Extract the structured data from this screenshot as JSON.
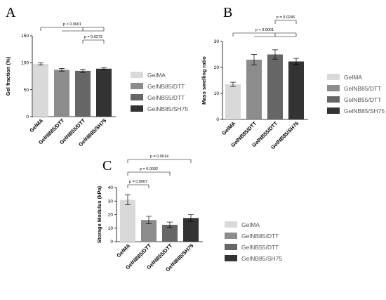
{
  "colors": [
    "#d9d9d9",
    "#8c8c8c",
    "#666666",
    "#333333"
  ],
  "chart_data": [
    {
      "type": "bar",
      "panel": "A",
      "categories": [
        "GelMA",
        "GelNB85/DTT",
        "GelNB55/DTT",
        "GelNB85/SH75"
      ],
      "values": [
        98,
        87,
        85,
        89
      ],
      "errors": [
        2,
        2.5,
        3,
        2
      ],
      "ylabel": "Gel fraction (%)",
      "ylim": [
        0,
        150
      ],
      "yticks": [
        0,
        50,
        100,
        150
      ],
      "legend": [
        "GelMA",
        "GelNB85/DTT",
        "GelNB55/DTT",
        "GelNB85/SH75"
      ],
      "legend_placement": "right",
      "comparisons": [
        {
          "type": "group",
          "text": "p < 0.0001"
        },
        {
          "type": "pair",
          "from": 2,
          "to": 3,
          "text": "p = 0.0272"
        }
      ]
    },
    {
      "type": "bar",
      "panel": "B",
      "categories": [
        "GelMA",
        "GelNB85/DTT",
        "GelNB55/DTT",
        "GelNB85/SH75"
      ],
      "values": [
        13.5,
        23,
        25,
        22.3
      ],
      "errors": [
        0.8,
        2,
        1.8,
        1.2
      ],
      "ylabel": "Mass swelling ratio",
      "ylim": [
        0,
        30
      ],
      "yticks": [
        0,
        10,
        20,
        30
      ],
      "legend": [
        "GelMA",
        "GelNB85/DTT",
        "GelNB55/DTT",
        "GelNB85/SH75"
      ],
      "legend_placement": "right",
      "comparisons": [
        {
          "type": "group",
          "text": "p < 0.0001"
        },
        {
          "type": "pair",
          "from": 2,
          "to": 3,
          "text": "p = 0.0246"
        }
      ]
    },
    {
      "type": "bar",
      "panel": "C",
      "categories": [
        "GelMA",
        "GelNB85/DTT",
        "GelNB55/DTT",
        "GelNB85/SH75"
      ],
      "values": [
        31,
        16,
        12.5,
        17.5
      ],
      "errors": [
        3.8,
        2.8,
        2,
        2.5
      ],
      "ylabel": "Storage Modulus (kPa)",
      "ylim": [
        0,
        40
      ],
      "yticks": [
        0,
        10,
        20,
        30,
        40
      ],
      "legend": [
        "GelMA",
        "GelNB85/DTT",
        "GelNB55/DTT",
        "GelNB85/SH75"
      ],
      "legend_placement": "right",
      "comparisons": [
        {
          "type": "pair",
          "from": 0,
          "to": 1,
          "text": "p = 0.0007"
        },
        {
          "type": "pair",
          "from": 0,
          "to": 2,
          "text": "p = 0.0002"
        },
        {
          "type": "pair",
          "from": 0,
          "to": 3,
          "text": "p = 0.0014"
        }
      ]
    }
  ]
}
